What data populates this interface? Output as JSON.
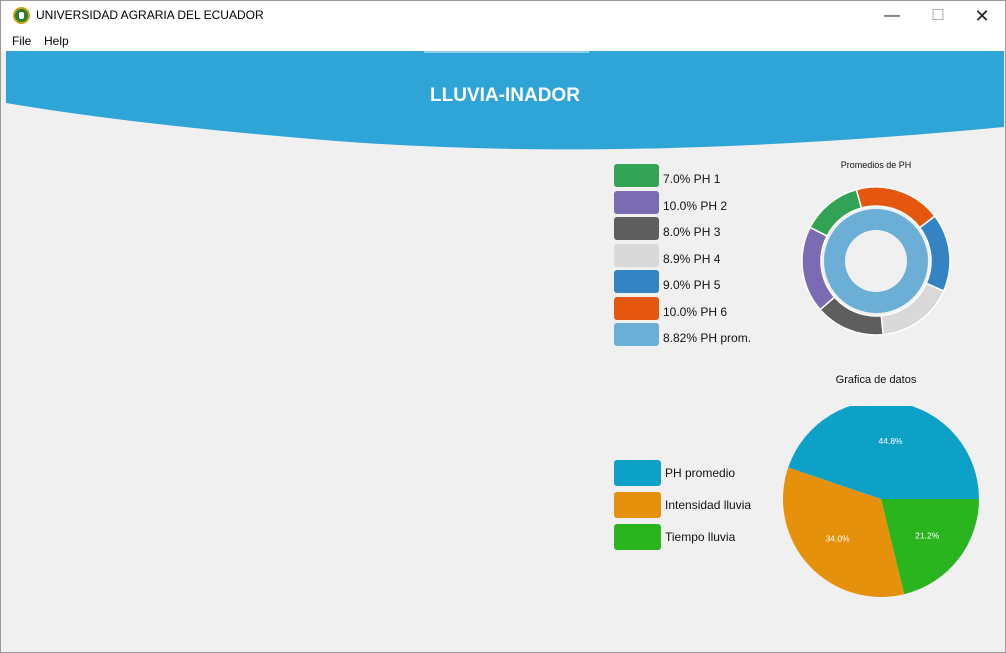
{
  "window": {
    "title": "UNIVERSIDAD AGRARIA DEL ECUADOR",
    "minimize": "—",
    "maximize": "☐",
    "close": "✕"
  },
  "menu": [
    "File",
    "Help"
  ],
  "header": {
    "title": "LLUVIA-INADOR",
    "color": "#2ea4d7"
  },
  "chart_data": [
    {
      "type": "pie",
      "variant": "donut",
      "title": "Promedios de PH",
      "legend_placement": "left",
      "slices": [
        {
          "label": "PH 1",
          "percent_text": "7.0%",
          "value": 7.0,
          "color": "#32a354"
        },
        {
          "label": "PH 2",
          "percent_text": "10.0%",
          "value": 10.0,
          "color": "#7a6bb2"
        },
        {
          "label": "PH 3",
          "percent_text": "8.0%",
          "value": 8.0,
          "color": "#5e5e5e"
        },
        {
          "label": "PH 4",
          "percent_text": "8.9%",
          "value": 8.9,
          "color": "#d9d9d9"
        },
        {
          "label": "PH 5",
          "percent_text": "9.0%",
          "value": 9.0,
          "color": "#3483c2"
        },
        {
          "label": "PH 6",
          "percent_text": "10.0%",
          "value": 10.0,
          "color": "#e5560f"
        }
      ],
      "inner": {
        "label": "PH prom.",
        "percent_text": "8.82%",
        "value": 8.82,
        "color": "#6baed6"
      }
    },
    {
      "type": "pie",
      "title": "Grafica de datos",
      "legend_placement": "left",
      "slices": [
        {
          "label": "PH promedio",
          "value": 44.8,
          "value_label": "44.8%",
          "color": "#0ea1c7"
        },
        {
          "label": "Intensidad lluvia",
          "value": 34.0,
          "value_label": "34.0%",
          "color": "#e6910b"
        },
        {
          "label": "Tiempo lluvia",
          "value": 21.2,
          "value_label": "21.2%",
          "color": "#2ab51f"
        }
      ]
    }
  ]
}
